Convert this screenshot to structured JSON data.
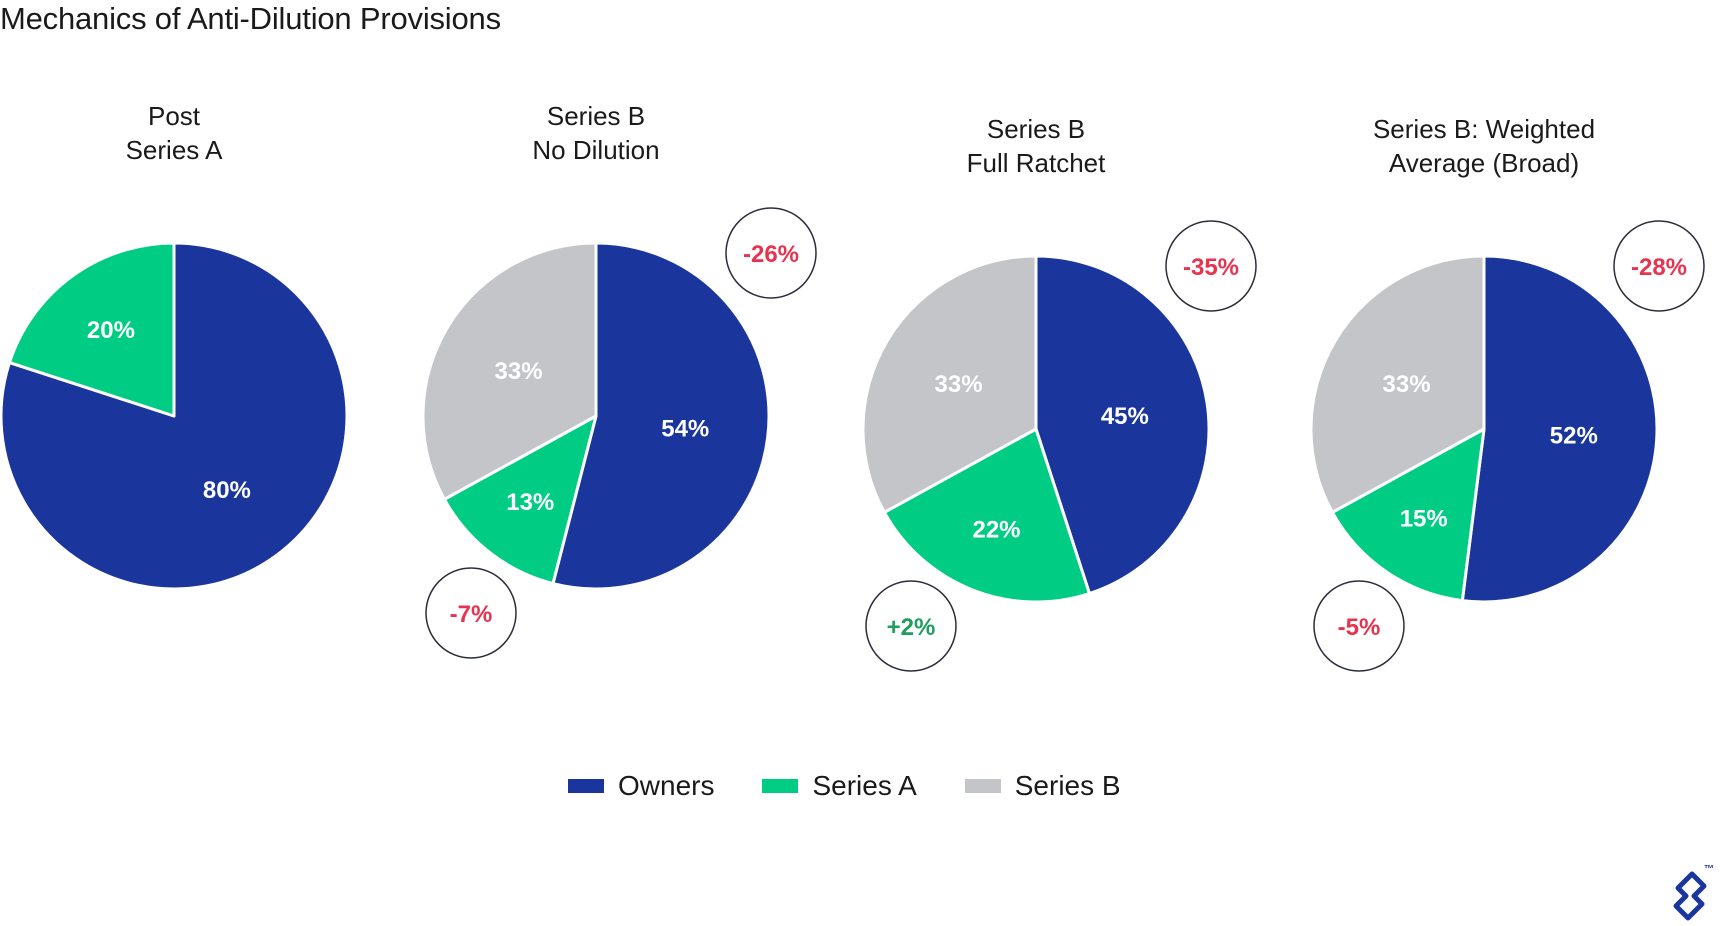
{
  "title": "Mechanics of Anti-Dilution Provisions",
  "colors": {
    "Owners": "#1a369c",
    "Series A": "#00cc84",
    "Series B": "#c4c5c9",
    "negative_change": "#e8334f",
    "positive_change": "#1f9e5e",
    "bubble_border": "#2a2e3a"
  },
  "chart_data": [
    {
      "type": "pie",
      "title_lines": [
        "Post",
        "Series A"
      ],
      "slices": [
        {
          "series": "Owners",
          "value": 80,
          "label": "80%"
        },
        {
          "series": "Series A",
          "value": 20,
          "label": "20%"
        }
      ],
      "changes": []
    },
    {
      "type": "pie",
      "title_lines": [
        "Series B",
        "No Dilution"
      ],
      "slices": [
        {
          "series": "Owners",
          "value": 54,
          "label": "54%"
        },
        {
          "series": "Series A",
          "value": 13,
          "label": "13%"
        },
        {
          "series": "Series B",
          "value": 33,
          "label": "33%"
        }
      ],
      "changes": [
        {
          "series": "Owners",
          "label": "-26%",
          "sign": "negative"
        },
        {
          "series": "Series A",
          "label": "-7%",
          "sign": "negative"
        }
      ]
    },
    {
      "type": "pie",
      "title_lines": [
        "Series B",
        "Full Ratchet"
      ],
      "slices": [
        {
          "series": "Owners",
          "value": 45,
          "label": "45%"
        },
        {
          "series": "Series A",
          "value": 22,
          "label": "22%"
        },
        {
          "series": "Series B",
          "value": 33,
          "label": "33%"
        }
      ],
      "changes": [
        {
          "series": "Owners",
          "label": "-35%",
          "sign": "negative"
        },
        {
          "series": "Series A",
          "label": "+2%",
          "sign": "positive"
        }
      ]
    },
    {
      "type": "pie",
      "title_lines": [
        "Series B: Weighted",
        "Average (Broad)"
      ],
      "slices": [
        {
          "series": "Owners",
          "value": 52,
          "label": "52%"
        },
        {
          "series": "Series A",
          "value": 15,
          "label": "15%"
        },
        {
          "series": "Series B",
          "value": 33,
          "label": "33%"
        }
      ],
      "changes": [
        {
          "series": "Owners",
          "label": "-28%",
          "sign": "negative"
        },
        {
          "series": "Series A",
          "label": "-5%",
          "sign": "negative"
        }
      ]
    }
  ],
  "legend": [
    {
      "name": "Owners",
      "label": "Owners"
    },
    {
      "name": "Series A",
      "label": "Series A"
    },
    {
      "name": "Series B",
      "label": "Series B"
    }
  ],
  "logo": {
    "icon": "toptal-logo-icon",
    "mark": "™"
  }
}
